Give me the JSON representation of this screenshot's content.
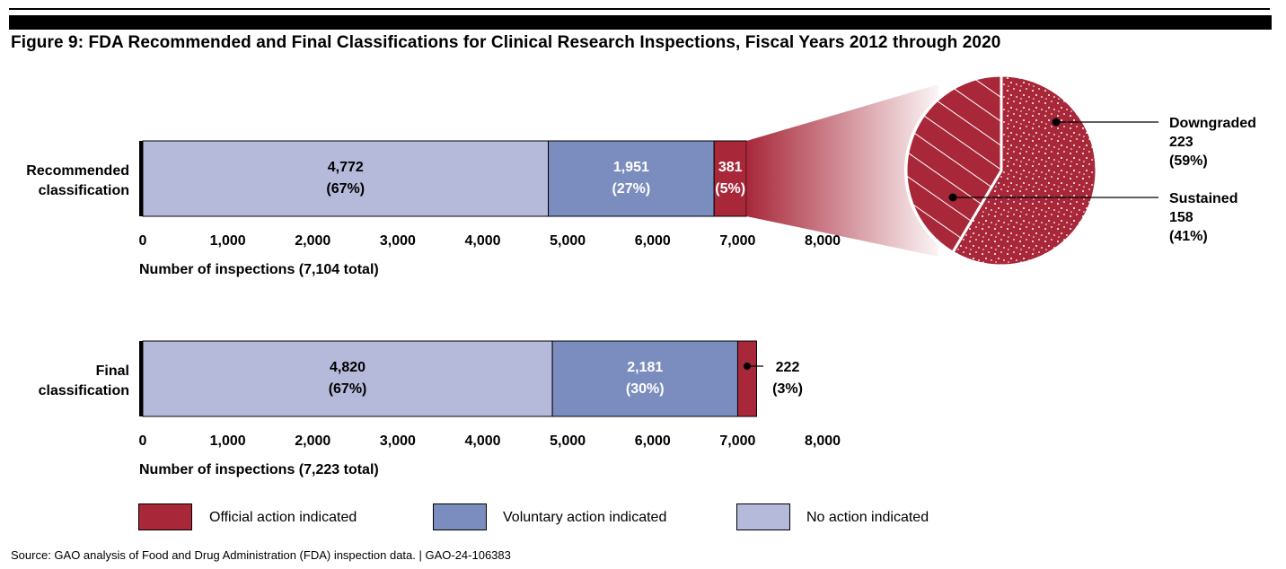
{
  "title": "Figure 9: FDA Recommended and Final Classifications for Clinical Research Inspections, Fiscal Years 2012 through 2020",
  "source": "Source: GAO analysis of Food and Drug Administration (FDA) inspection data.  |  GAO-24-106383",
  "colors": {
    "official": "#A8283A",
    "voluntary": "#7B8DBE",
    "none": "#B6BADA",
    "pie": "#A8283A"
  },
  "legend": [
    {
      "key": "official",
      "label": "Official action indicated"
    },
    {
      "key": "voluntary",
      "label": "Voluntary action indicated"
    },
    {
      "key": "none",
      "label": "No action indicated"
    }
  ],
  "chart_data": [
    {
      "type": "bar",
      "orientation": "horizontal-stacked",
      "category": "Recommended classification",
      "category_lines": [
        "Recommended",
        "classification"
      ],
      "xlabel": "Number of inspections (7,104 total)",
      "xlim": [
        0,
        8000
      ],
      "xticks": [
        "0",
        "1,000",
        "2,000",
        "3,000",
        "4,000",
        "5,000",
        "6,000",
        "7,000",
        "8,000"
      ],
      "series": [
        {
          "name": "No action indicated",
          "key": "none",
          "value": 4772,
          "label": "4,772",
          "pct": "(67%)"
        },
        {
          "name": "Voluntary action indicated",
          "key": "voluntary",
          "value": 1951,
          "label": "1,951",
          "pct": "(27%)"
        },
        {
          "name": "Official action indicated",
          "key": "official",
          "value": 381,
          "label": "381",
          "pct": "(5%)"
        }
      ]
    },
    {
      "type": "pie",
      "subset_of": "Official action indicated (381)",
      "slices": [
        {
          "name": "Downgraded",
          "value": 223,
          "label": "223",
          "pct": "(59%)",
          "pattern": "dots"
        },
        {
          "name": "Sustained",
          "value": 158,
          "label": "158",
          "pct": "(41%)",
          "pattern": "hatch"
        }
      ]
    },
    {
      "type": "bar",
      "orientation": "horizontal-stacked",
      "category": "Final classification",
      "category_lines": [
        "Final",
        "classification"
      ],
      "xlabel": "Number of inspections (7,223 total)",
      "xlim": [
        0,
        8000
      ],
      "xticks": [
        "0",
        "1,000",
        "2,000",
        "3,000",
        "4,000",
        "5,000",
        "6,000",
        "7,000",
        "8,000"
      ],
      "series": [
        {
          "name": "No action indicated",
          "key": "none",
          "value": 4820,
          "label": "4,820",
          "pct": "(67%)"
        },
        {
          "name": "Voluntary action indicated",
          "key": "voluntary",
          "value": 2181,
          "label": "2,181",
          "pct": "(30%)"
        },
        {
          "name": "Official action indicated",
          "key": "official",
          "value": 222,
          "label": "222",
          "pct": "(3%)"
        }
      ]
    }
  ]
}
